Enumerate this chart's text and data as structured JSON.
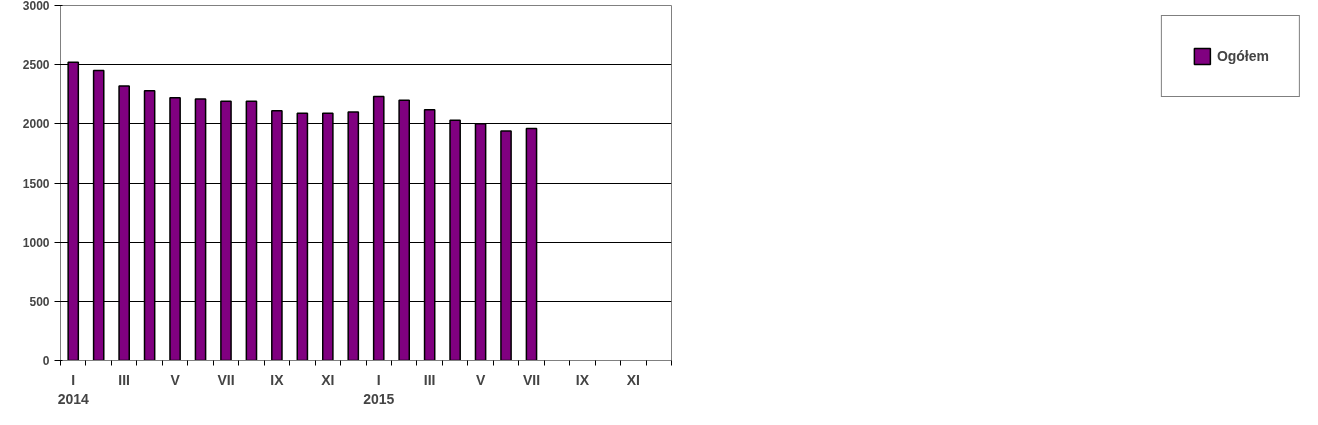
{
  "chart_data": {
    "type": "bar",
    "categories": [
      "I\n2014",
      null,
      "III",
      null,
      "V",
      null,
      "VII",
      null,
      "IX",
      null,
      "XI",
      null,
      "I\n2015",
      null,
      "III",
      null,
      "V",
      null,
      "VII",
      null,
      "IX",
      null,
      "XI",
      null
    ],
    "series": [
      {
        "name": "Ogółem",
        "color": "#800080",
        "values": [
          2520,
          2450,
          2320,
          2280,
          2220,
          2210,
          2190,
          2190,
          2110,
          2090,
          2090,
          2100,
          2230,
          2200,
          2120,
          2030,
          2000,
          1940,
          1960,
          null,
          null,
          null,
          null,
          null
        ]
      }
    ],
    "ylim": [
      0,
      3000
    ],
    "yticks": [
      0,
      500,
      1000,
      1500,
      2000,
      2500,
      3000
    ],
    "grid": "y",
    "legend": "right"
  }
}
